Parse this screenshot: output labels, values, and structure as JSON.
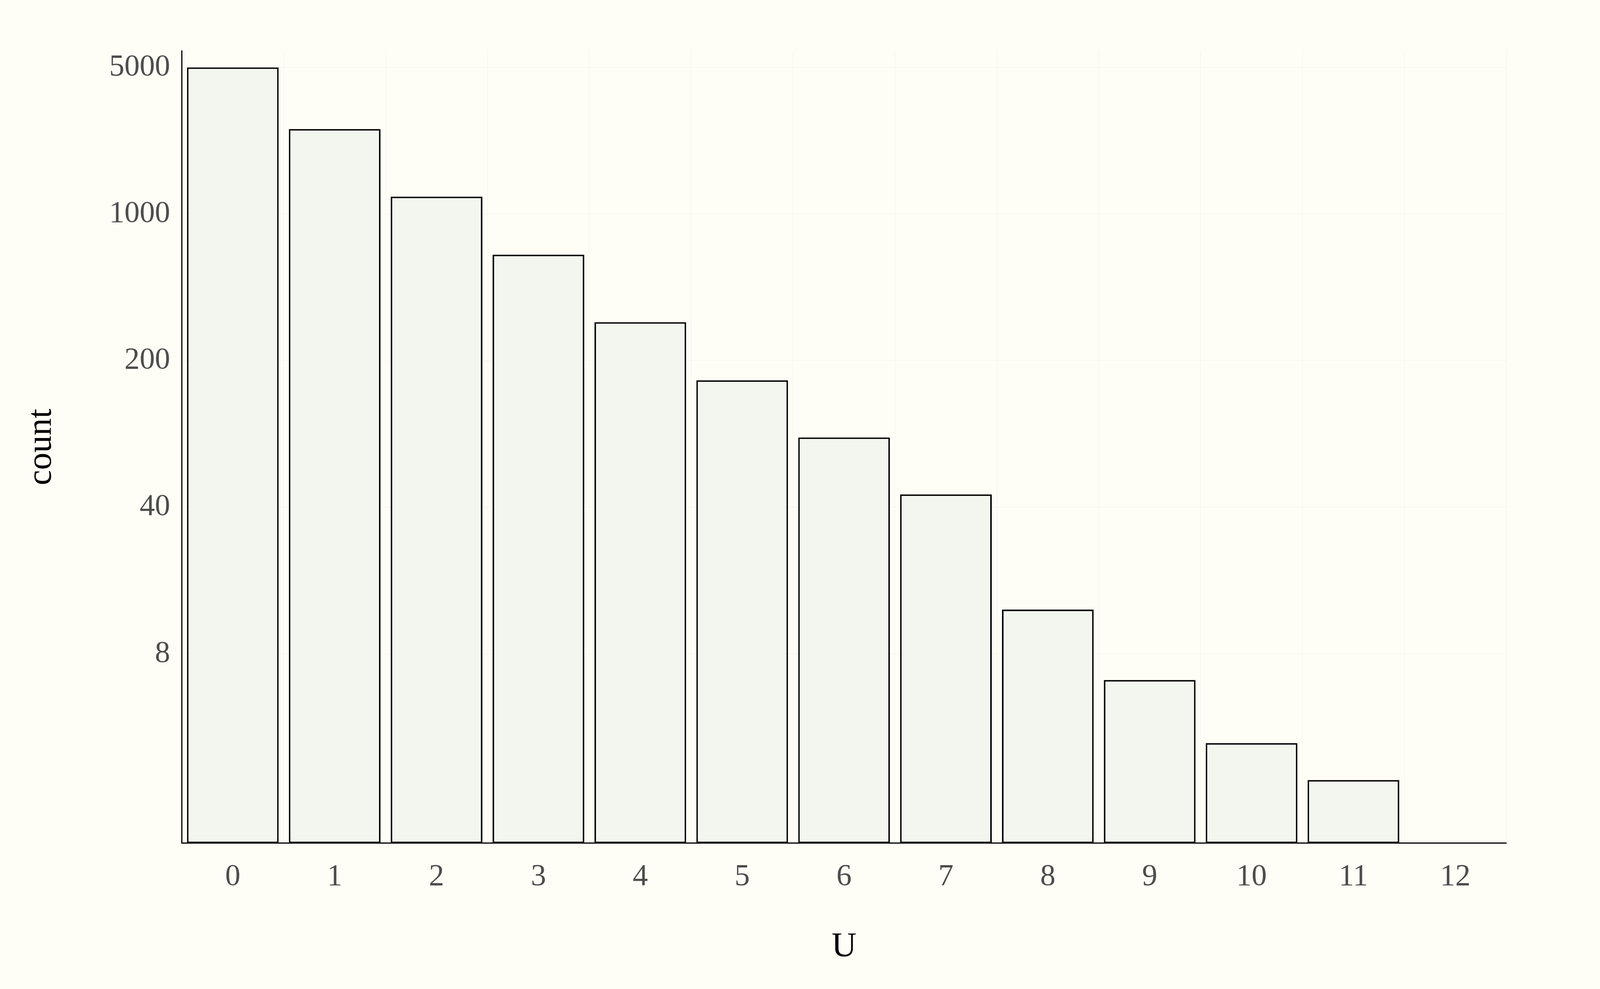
{
  "chart_data": {
    "type": "bar",
    "xlabel": "U",
    "ylabel": "count",
    "categories": [
      "0",
      "1",
      "2",
      "3",
      "4",
      "5",
      "6",
      "7",
      "8",
      "9",
      "10",
      "11",
      "12"
    ],
    "values": [
      5000,
      2540,
      1210,
      640,
      305,
      161,
      86,
      46,
      13,
      6,
      3,
      2,
      1
    ],
    "color": "#f3f5ef",
    "log": "y",
    "ylim": [
      1,
      6000
    ],
    "yticks": [
      8,
      40,
      200,
      1000,
      5000
    ],
    "grid": true
  }
}
